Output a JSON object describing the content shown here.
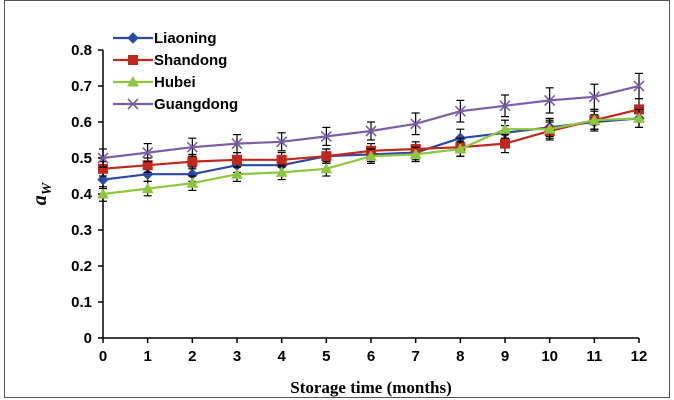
{
  "chart_data": {
    "type": "line",
    "x": [
      0,
      1,
      2,
      3,
      4,
      5,
      6,
      7,
      8,
      9,
      10,
      11,
      12
    ],
    "xlabel": "Storage time (months)",
    "ylabel_main": "a",
    "ylabel_sub": "W",
    "xlim": [
      0,
      12
    ],
    "ylim": [
      0,
      0.8
    ],
    "yticks": [
      "0",
      "0.1",
      "0.2",
      "0.3",
      "0.4",
      "0.5",
      "0.6",
      "0.7",
      "0.8"
    ],
    "xticks": [
      "0",
      "1",
      "2",
      "3",
      "4",
      "5",
      "6",
      "7",
      "8",
      "9",
      "10",
      "11",
      "12"
    ],
    "grid": false,
    "legend_position": "top-left",
    "series": [
      {
        "name": "Liaoning",
        "color": "#2b4aa5",
        "marker": "diamond",
        "values": [
          0.44,
          0.455,
          0.455,
          0.48,
          0.48,
          0.505,
          0.51,
          0.515,
          0.555,
          0.57,
          0.585,
          0.6,
          0.61
        ],
        "errors": [
          0.025,
          0.02,
          0.02,
          0.02,
          0.02,
          0.02,
          0.02,
          0.02,
          0.025,
          0.02,
          0.025,
          0.02,
          0.025
        ]
      },
      {
        "name": "Shandong",
        "color": "#c0281e",
        "marker": "square",
        "values": [
          0.47,
          0.48,
          0.49,
          0.495,
          0.495,
          0.505,
          0.52,
          0.525,
          0.53,
          0.54,
          0.575,
          0.605,
          0.635
        ],
        "errors": [
          0.02,
          0.02,
          0.02,
          0.02,
          0.02,
          0.02,
          0.02,
          0.02,
          0.025,
          0.025,
          0.025,
          0.03,
          0.03
        ]
      },
      {
        "name": "Hubei",
        "color": "#8dc63f",
        "marker": "triangle",
        "values": [
          0.4,
          0.415,
          0.43,
          0.455,
          0.46,
          0.47,
          0.505,
          0.51,
          0.525,
          0.58,
          0.58,
          0.605,
          0.61
        ],
        "errors": [
          0.02,
          0.02,
          0.02,
          0.02,
          0.02,
          0.02,
          0.02,
          0.02,
          0.02,
          0.025,
          0.025,
          0.025,
          0.025
        ]
      },
      {
        "name": "Guangdong",
        "color": "#7b5ea7",
        "marker": "x",
        "values": [
          0.5,
          0.515,
          0.53,
          0.54,
          0.545,
          0.56,
          0.575,
          0.595,
          0.63,
          0.645,
          0.66,
          0.67,
          0.7
        ],
        "errors": [
          0.025,
          0.025,
          0.025,
          0.025,
          0.025,
          0.025,
          0.025,
          0.03,
          0.03,
          0.03,
          0.035,
          0.035,
          0.035
        ]
      }
    ]
  }
}
